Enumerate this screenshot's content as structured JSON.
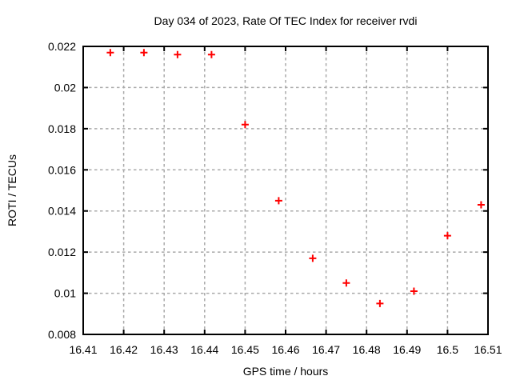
{
  "title": "Day 034 of 2023, Rate Of TEC Index for receiver rvdi",
  "colors": {
    "marker": "#ff0000",
    "grid": "#aaaaaa",
    "axis": "#000000",
    "background": "#ffffff"
  },
  "chart_data": {
    "type": "scatter",
    "title": "Day 034 of 2023, Rate Of TEC Index for receiver rvdi",
    "xlabel": "GPS time / hours",
    "ylabel": "ROTI / TECUs",
    "xlim": [
      16.41,
      16.51
    ],
    "ylim": [
      0.008,
      0.022
    ],
    "xticks": [
      16.41,
      16.42,
      16.43,
      16.44,
      16.45,
      16.46,
      16.47,
      16.48,
      16.49,
      16.5,
      16.51
    ],
    "xtick_labels": [
      "16.41",
      "16.42",
      "16.43",
      "16.44",
      "16.45",
      "16.46",
      "16.47",
      "16.48",
      "16.49",
      "16.5",
      "16.51"
    ],
    "yticks": [
      0.008,
      0.01,
      0.012,
      0.014,
      0.016,
      0.018,
      0.02,
      0.022
    ],
    "ytick_labels": [
      "0.008",
      "0.01",
      "0.012",
      "0.014",
      "0.016",
      "0.018",
      "0.02",
      "0.022"
    ],
    "grid": true,
    "legend": "none",
    "marker": {
      "shape": "plus",
      "color": "#ff0000",
      "size": 9
    },
    "series": [
      {
        "name": "ROTI",
        "x": [
          16.4167,
          16.425,
          16.4333,
          16.4417,
          16.45,
          16.4583,
          16.4667,
          16.475,
          16.4833,
          16.4917,
          16.5,
          16.5083
        ],
        "y": [
          0.0217,
          0.0217,
          0.0216,
          0.0216,
          0.0182,
          0.0145,
          0.0117,
          0.0105,
          0.0095,
          0.0101,
          0.0128,
          0.0143
        ]
      }
    ]
  }
}
